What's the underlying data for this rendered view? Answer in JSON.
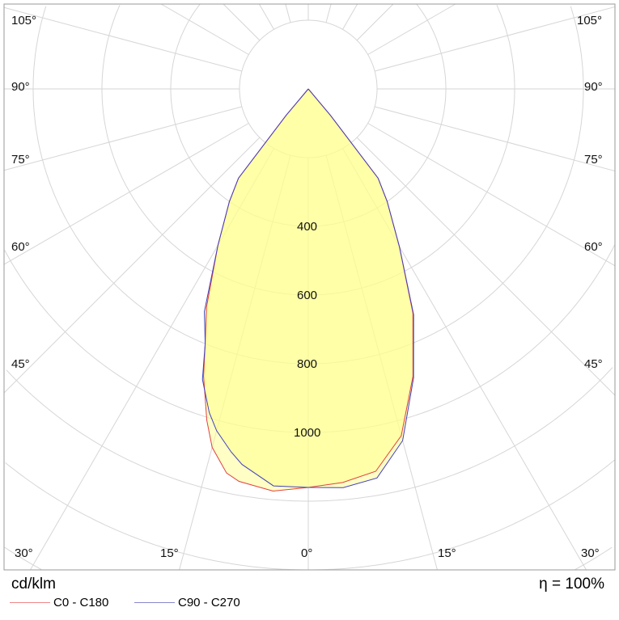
{
  "chart_data": {
    "type": "polar-line",
    "unit": "cd/klm",
    "efficiency": "η = 100%",
    "radial_ticks": [
      400,
      600,
      800,
      1000
    ],
    "radial_step": 200,
    "angle_labels_left": [
      "105°",
      "90°",
      "75°",
      "60°",
      "45°",
      "30°"
    ],
    "angle_labels_bottom": [
      "15°",
      "0°",
      "15°"
    ],
    "angle_labels_right": [
      "105°",
      "90°",
      "75°",
      "60°",
      "45°",
      "30°"
    ],
    "series": [
      {
        "name": "C0 - C180",
        "color": "#e04040",
        "angles": [
          -42,
          -40,
          -38,
          -35,
          -30,
          -25,
          -22,
          -20,
          -17,
          -15,
          -12,
          -10,
          -5,
          0,
          5,
          10,
          15,
          20,
          25,
          30,
          35,
          38,
          40,
          42
        ],
        "values": [
          0,
          100,
          330,
          400,
          525,
          700,
          800,
          890,
          1009,
          1080,
          1143,
          1160,
          1175,
          1160,
          1150,
          1130,
          1045,
          890,
          720,
          530,
          400,
          330,
          100,
          0
        ]
      },
      {
        "name": "C90 - C270",
        "color": "#4040c0",
        "angles": [
          -42,
          -40,
          -38,
          -35,
          -30,
          -25,
          -22,
          -20,
          -17,
          -15,
          -12,
          -10,
          -5,
          0,
          5,
          10,
          15,
          20,
          25,
          30,
          35,
          38,
          40,
          42
        ],
        "values": [
          0,
          100,
          330,
          400,
          525,
          715,
          800,
          900,
          985,
          1030,
          1080,
          1110,
          1160,
          1160,
          1165,
          1150,
          1060,
          895,
          725,
          530,
          400,
          330,
          100,
          0
        ]
      }
    ]
  }
}
